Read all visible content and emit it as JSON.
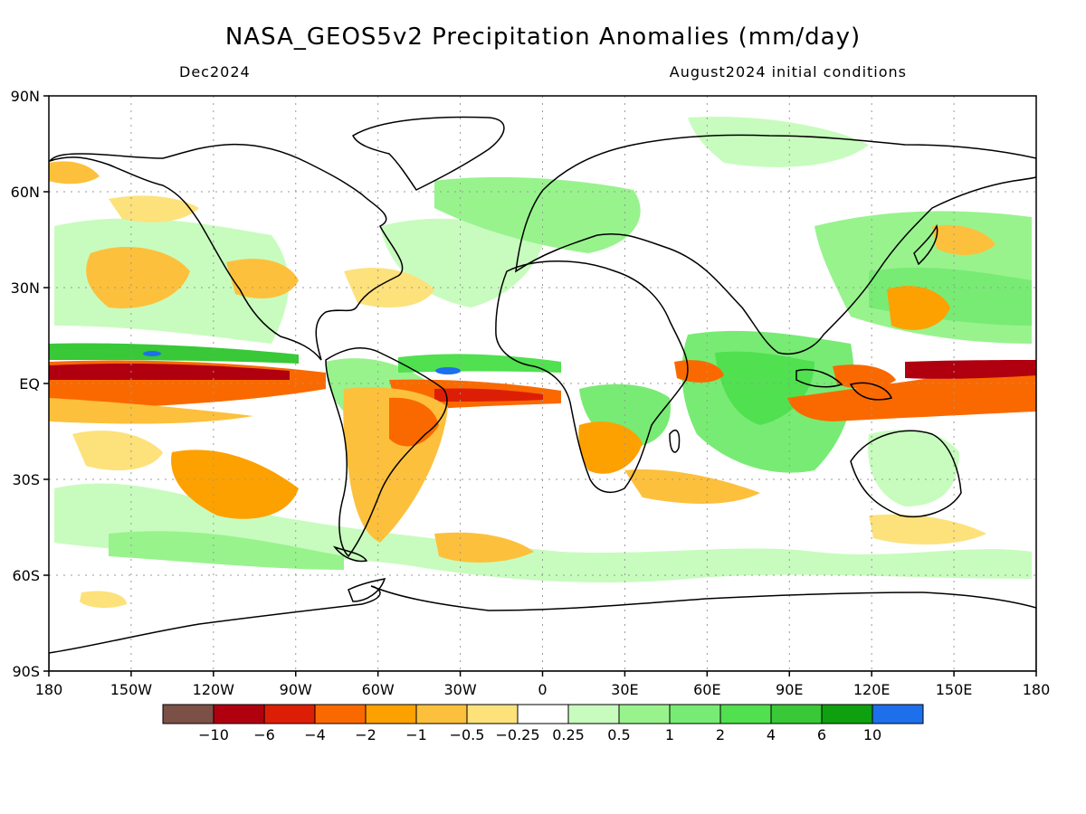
{
  "header": {
    "title": "NASA_GEOS5v2 Precipitation Anomalies (mm/day)",
    "valid_month": "Dec2024",
    "init": "August2024 initial conditions"
  },
  "map": {
    "lat_ticks": [
      "90N",
      "60N",
      "30N",
      "EQ",
      "30S",
      "60S",
      "90S"
    ],
    "lon_ticks": [
      "180",
      "150W",
      "120W",
      "90W",
      "60W",
      "30W",
      "0",
      "30E",
      "60E",
      "90E",
      "120E",
      "150E",
      "180"
    ],
    "regions": [
      {
        "name": "equatorial-pacific-dry-band",
        "lon": [
          -180,
          -75
        ],
        "lat": [
          -12,
          8
        ],
        "class": "-6"
      },
      {
        "name": "central-pacific-wet-strip",
        "lon": [
          -180,
          -100
        ],
        "lat": [
          8,
          12
        ],
        "class": "4"
      },
      {
        "name": "equatorial-atlantic-dry",
        "lon": [
          -45,
          8
        ],
        "lat": [
          -8,
          2
        ],
        "class": "-4"
      },
      {
        "name": "maritime-continent-dry",
        "lon": [
          95,
          180
        ],
        "lat": [
          -8,
          8
        ],
        "class": "-6"
      },
      {
        "name": "indian-ocean-wet",
        "lon": [
          45,
          100
        ],
        "lat": [
          -20,
          15
        ],
        "class": "2"
      },
      {
        "name": "southern-africa-dry",
        "lon": [
          10,
          35
        ],
        "lat": [
          -30,
          -10
        ],
        "class": "-2"
      },
      {
        "name": "south-america-dry",
        "lon": [
          -75,
          -40
        ],
        "lat": [
          -35,
          5
        ],
        "class": "-2"
      },
      {
        "name": "north-pacific-dry",
        "lon": [
          -160,
          -110
        ],
        "lat": [
          20,
          45
        ],
        "class": "-1"
      },
      {
        "name": "western-pacific-wet",
        "lon": [
          120,
          180
        ],
        "lat": [
          15,
          50
        ],
        "class": "1"
      },
      {
        "name": "south-pacific-dry",
        "lon": [
          -140,
          -90
        ],
        "lat": [
          -40,
          -20
        ],
        "class": "-2"
      },
      {
        "name": "southern-ocean-wet",
        "lon": [
          -150,
          60
        ],
        "lat": [
          -60,
          -40
        ],
        "class": "0.5"
      }
    ]
  },
  "colorbar": {
    "colors": [
      "#7b5046",
      "#b00010",
      "#dd1e06",
      "#fa6900",
      "#fda100",
      "#fdc03c",
      "#fde17b",
      "#ffffff",
      "#c8fcbe",
      "#98f38d",
      "#78eb74",
      "#50e050",
      "#38c838",
      "#0fa00f",
      "#1e6feb"
    ],
    "labels": [
      "-10",
      "-6",
      "-4",
      "-2",
      "-1",
      "-0.5",
      "-0.25",
      "0.25",
      "0.5",
      "1",
      "2",
      "4",
      "6",
      "10"
    ]
  }
}
